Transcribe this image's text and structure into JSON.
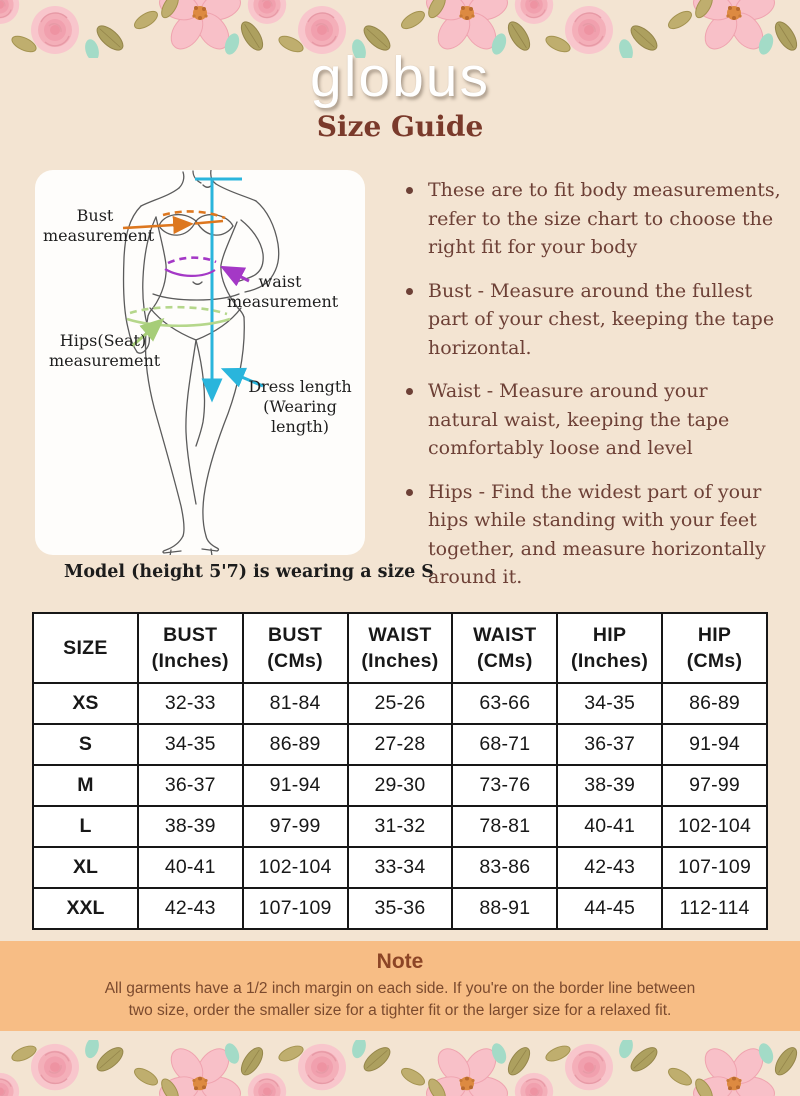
{
  "header": {
    "logo_text": "globus",
    "title": "Size Guide"
  },
  "figure": {
    "annotations": {
      "bust": [
        "Bust",
        "measurement"
      ],
      "waist": [
        "waist",
        "measurement"
      ],
      "hips": [
        "Hips(Seat)",
        "measurement"
      ],
      "dress": [
        "Dress length",
        "(Wearing length)"
      ]
    },
    "caption": "Model (height 5'7) is wearing a size S"
  },
  "instructions": [
    "These are to fit body measurements, refer to the size chart to choose the right fit for your body",
    "Bust - Measure around the fullest part of your chest, keeping the tape horizontal.",
    "Waist - Measure around your natural waist, keeping the tape comfortably loose and level",
    "Hips - Find the widest part of your hips while standing with your feet together, and measure horizontally around it."
  ],
  "size_table": {
    "headers": [
      [
        "SIZE",
        ""
      ],
      [
        "BUST",
        "(Inches)"
      ],
      [
        "BUST",
        "(CMs)"
      ],
      [
        "WAIST",
        "(Inches)"
      ],
      [
        "WAIST",
        "(CMs)"
      ],
      [
        "HIP",
        "(Inches)"
      ],
      [
        "HIP",
        "(CMs)"
      ]
    ],
    "rows": [
      [
        "XS",
        "32-33",
        "81-84",
        "25-26",
        "63-66",
        "34-35",
        "86-89"
      ],
      [
        "S",
        "34-35",
        "86-89",
        "27-28",
        "68-71",
        "36-37",
        "91-94"
      ],
      [
        "M",
        "36-37",
        "91-94",
        "29-30",
        "73-76",
        "38-39",
        "97-99"
      ],
      [
        "L",
        "38-39",
        "97-99",
        "31-32",
        "78-81",
        "40-41",
        "102-104"
      ],
      [
        "XL",
        "40-41",
        "102-104",
        "33-34",
        "83-86",
        "42-43",
        "107-109"
      ],
      [
        "XXL",
        "42-43",
        "107-109",
        "35-36",
        "88-91",
        "44-45",
        "112-114"
      ]
    ]
  },
  "note": {
    "title": "Note",
    "lines": [
      "All garments have a 1/2 inch margin on each side. If you're on the border line between",
      "two size, order the smaller size for a tighter fit or the larger size for a relaxed fit."
    ]
  },
  "colors": {
    "page_background": "#f3e4d2",
    "note_background": "#f7bd85",
    "title_brown": "#7a3a2b",
    "text_brown": "#6d4036",
    "arrow_bust_orange": "#dd771f",
    "arrow_waist_purple": "#a438c6",
    "arrow_hips_green": "#b5d78b",
    "arrow_dress_cyan": "#2ab5dc"
  }
}
